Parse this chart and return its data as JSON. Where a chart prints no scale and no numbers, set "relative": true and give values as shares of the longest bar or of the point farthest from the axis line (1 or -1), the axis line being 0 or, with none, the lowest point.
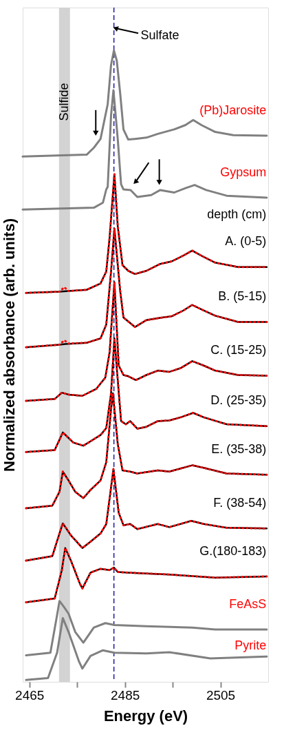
{
  "chart_data": {
    "type": "line",
    "xlabel": "Energy (eV)",
    "ylabel": "Normalized absorbance (arb. units)",
    "xlim": [
      2463.6,
      2515
    ],
    "xticks": [
      2465,
      {
        "value": 2475,
        "label": null
      },
      2485,
      {
        "value": 2495,
        "label": null
      },
      2505
    ],
    "relative": true,
    "series": [
      {
        "name": "(Pb)Jarosite",
        "color": "#808080",
        "x": [
          2463.6,
          2477.0,
          2478.5,
          2479.9,
          2481.4,
          2482.1,
          2482.7,
          2483.3,
          2484.0,
          2484.7,
          2485.7,
          2487.1,
          2489.5,
          2491.9,
          2495.3,
          2497.7,
          2499.3,
          2501.0,
          2503.9,
          2507.7,
          2514.7
        ],
        "values": [
          0.832,
          0.835,
          0.846,
          0.86,
          0.915,
          0.977,
          1.0,
          0.984,
          0.933,
          0.875,
          0.859,
          0.86,
          0.862,
          0.868,
          0.875,
          0.882,
          0.89,
          0.882,
          0.871,
          0.866,
          0.865
        ]
      },
      {
        "name": "Gypsum",
        "color": "#808080",
        "x": [
          2463.6,
          2478.5,
          2480.4,
          2481.1,
          2481.4,
          2482.1,
          2482.6,
          2483.5,
          2484.2,
          2484.7,
          2486.2,
          2487.6,
          2490.5,
          2492.4,
          2495.3,
          2497.7,
          2499.6,
          2502.0,
          2506.3,
          2514.7
        ],
        "values": [
          0.748,
          0.751,
          0.759,
          0.78,
          0.784,
          0.897,
          0.937,
          0.86,
          0.788,
          0.78,
          0.779,
          0.768,
          0.771,
          0.779,
          0.775,
          0.782,
          0.787,
          0.779,
          0.77,
          0.767
        ]
      },
      {
        "name": "A. (0-5)",
        "color": "#000000",
        "x": [
          2464.3,
          2471.3,
          2473.2,
          2477.0,
          2479.9,
          2481.1,
          2481.8,
          2482.8,
          2483.5,
          2484.5,
          2485.7,
          2487.1,
          2489.5,
          2492.4,
          2494.8,
          2497.2,
          2499.1,
          2501.0,
          2503.9,
          2508.7,
          2514.7
        ],
        "values": [
          0.616,
          0.618,
          0.619,
          0.621,
          0.631,
          0.65,
          0.704,
          0.804,
          0.722,
          0.66,
          0.651,
          0.646,
          0.651,
          0.662,
          0.666,
          0.675,
          0.683,
          0.675,
          0.664,
          0.657,
          0.657
        ]
      },
      {
        "name": "B. (5-15)",
        "color": "#000000",
        "x": [
          2464.3,
          2471.3,
          2472.5,
          2477.0,
          2479.9,
          2481.1,
          2482.1,
          2482.8,
          2484.0,
          2484.7,
          2487.1,
          2489.5,
          2492.8,
          2494.8,
          2497.2,
          2499.1,
          2501.0,
          2503.9,
          2508.7,
          2514.7
        ],
        "values": [
          0.53,
          0.534,
          0.535,
          0.537,
          0.544,
          0.566,
          0.65,
          0.718,
          0.62,
          0.577,
          0.562,
          0.573,
          0.577,
          0.579,
          0.588,
          0.597,
          0.59,
          0.58,
          0.57,
          0.57
        ]
      },
      {
        "name": "C. (15-25)",
        "color": "#000000",
        "x": [
          2464.3,
          2470.3,
          2471.8,
          2473.2,
          2476.1,
          2479.0,
          2480.9,
          2481.8,
          2482.8,
          2483.7,
          2484.7,
          2485.7,
          2487.3,
          2489.5,
          2491.9,
          2494.3,
          2496.7,
          2499.1,
          2501.5,
          2503.9,
          2508.7,
          2514.7
        ],
        "values": [
          0.445,
          0.448,
          0.458,
          0.455,
          0.453,
          0.464,
          0.482,
          0.522,
          0.633,
          0.501,
          0.486,
          0.484,
          0.478,
          0.486,
          0.493,
          0.491,
          0.497,
          0.508,
          0.501,
          0.493,
          0.486,
          0.485
        ]
      },
      {
        "name": "D. (25-35)",
        "color": "#000000",
        "x": [
          2464.3,
          2470.3,
          2472.0,
          2472.7,
          2474.2,
          2476.3,
          2477.8,
          2479.9,
          2481.1,
          2482.1,
          2482.8,
          2484.2,
          2485.2,
          2486.1,
          2487.6,
          2489.5,
          2491.9,
          2494.3,
          2496.7,
          2499.3,
          2501.5,
          2506.3,
          2514.7
        ],
        "values": [
          0.364,
          0.367,
          0.395,
          0.39,
          0.379,
          0.374,
          0.381,
          0.391,
          0.402,
          0.457,
          0.544,
          0.413,
          0.408,
          0.413,
          0.401,
          0.404,
          0.413,
          0.414,
          0.419,
          0.426,
          0.419,
          0.408,
          0.405
        ]
      },
      {
        "name": "E. (35-38)",
        "color": "#000000",
        "x": [
          2464.3,
          2469.8,
          2471.3,
          2472.0,
          2473.2,
          2474.6,
          2476.3,
          2477.8,
          2479.9,
          2481.1,
          2482.1,
          2482.5,
          2483.5,
          2484.5,
          2486.1,
          2487.6,
          2491.9,
          2494.3,
          2499.1,
          2501.5,
          2506.3,
          2514.7
        ],
        "values": [
          0.275,
          0.279,
          0.301,
          0.333,
          0.319,
          0.301,
          0.291,
          0.304,
          0.319,
          0.348,
          0.432,
          0.457,
          0.377,
          0.335,
          0.333,
          0.33,
          0.335,
          0.333,
          0.343,
          0.339,
          0.33,
          0.328
        ]
      },
      {
        "name": "F. (38-54)",
        "color": "#000000",
        "x": [
          2464.3,
          2469.8,
          2471.3,
          2472.0,
          2473.7,
          2476.1,
          2477.8,
          2479.9,
          2481.1,
          2482.6,
          2483.7,
          2484.7,
          2486.1,
          2487.6,
          2491.9,
          2494.3,
          2498.9,
          2501.5,
          2506.3,
          2514.7
        ],
        "values": [
          0.192,
          0.199,
          0.235,
          0.251,
          0.232,
          0.212,
          0.222,
          0.235,
          0.25,
          0.337,
          0.268,
          0.248,
          0.25,
          0.242,
          0.25,
          0.245,
          0.255,
          0.25,
          0.244,
          0.243
        ]
      },
      {
        "name": "G.(180-183)",
        "color": "#000000",
        "x": [
          2464.3,
          2470.3,
          2471.8,
          2472.5,
          2473.7,
          2475.6,
          2476.1,
          2477.8,
          2479.9,
          2481.8,
          2482.7,
          2483.5,
          2485.7,
          2494.3,
          2503.9,
          2514.7
        ],
        "values": [
          0.126,
          0.132,
          0.177,
          0.212,
          0.192,
          0.155,
          0.148,
          0.173,
          0.179,
          0.177,
          0.181,
          0.174,
          0.173,
          0.17,
          0.165,
          0.167
        ]
      },
      {
        "name": "FeAsS",
        "color": "#808080",
        "x": [
          2464.3,
          2469.4,
          2470.6,
          2471.3,
          2472.2,
          2473.2,
          2474.6,
          2476.3,
          2478.5,
          2480.9,
          2482.8,
          2489.5,
          2499.1,
          2503.9,
          2514.7
        ],
        "values": [
          0.042,
          0.046,
          0.097,
          0.128,
          0.119,
          0.108,
          0.079,
          0.062,
          0.086,
          0.093,
          0.09,
          0.088,
          0.086,
          0.083,
          0.083
        ]
      },
      {
        "name": "Pyrite",
        "color": "#808080",
        "x": [
          2464.3,
          2468.9,
          2470.8,
          2472.0,
          2473.2,
          2475.4,
          2476.1,
          2477.8,
          2480.4,
          2482.8,
          2489.5,
          2494.3,
          2502.9,
          2514.7
        ],
        "values": [
          0.003,
          0.006,
          0.046,
          0.101,
          0.079,
          0.032,
          0.021,
          0.041,
          0.05,
          0.046,
          0.045,
          0.047,
          0.037,
          0.04
        ]
      },
      {
        "color": "#ff0000",
        "line_style": "dotted",
        "x": [
          2464.3,
          2471.3,
          2472.3,
          2473.2,
          2477.0,
          2479.9,
          2481.1,
          2481.8,
          2482.8,
          2483.5,
          2484.5,
          2485.7,
          2487.1,
          2489.5,
          2492.4,
          2494.8,
          2497.2,
          2499.1,
          2501.0,
          2503.9,
          2508.7,
          2514.7
        ],
        "values": [
          0.616,
          0.618,
          0.625,
          0.619,
          0.621,
          0.631,
          0.65,
          0.704,
          0.804,
          0.722,
          0.66,
          0.651,
          0.646,
          0.651,
          0.662,
          0.666,
          0.675,
          0.683,
          0.675,
          0.664,
          0.657,
          0.657
        ]
      },
      {
        "color": "#ff0000",
        "line_style": "dotted",
        "x": [
          2464.3,
          2471.3,
          2472.3,
          2473.2,
          2477.0,
          2479.9,
          2481.1,
          2482.1,
          2482.8,
          2484.0,
          2484.7,
          2487.1,
          2489.5,
          2492.8,
          2494.8,
          2497.2,
          2499.1,
          2501.0,
          2503.9,
          2508.7,
          2514.7
        ],
        "values": [
          0.53,
          0.534,
          0.541,
          0.536,
          0.537,
          0.544,
          0.566,
          0.65,
          0.718,
          0.62,
          0.577,
          0.562,
          0.573,
          0.577,
          0.579,
          0.588,
          0.597,
          0.59,
          0.58,
          0.57,
          0.57
        ]
      },
      {
        "color": "#ff0000",
        "line_style": "dotted",
        "x": [
          2464.3,
          2470.3,
          2471.8,
          2473.2,
          2476.1,
          2479.0,
          2480.9,
          2481.8,
          2482.8,
          2483.7,
          2484.7,
          2485.7,
          2487.3,
          2489.5,
          2491.9,
          2494.3,
          2496.7,
          2499.1,
          2501.5,
          2503.9,
          2508.7,
          2514.7
        ],
        "values": [
          0.445,
          0.448,
          0.458,
          0.455,
          0.453,
          0.464,
          0.482,
          0.522,
          0.633,
          0.501,
          0.486,
          0.484,
          0.478,
          0.486,
          0.493,
          0.491,
          0.497,
          0.508,
          0.501,
          0.493,
          0.486,
          0.485
        ]
      },
      {
        "color": "#ff0000",
        "line_style": "dotted",
        "x": [
          2464.3,
          2470.3,
          2472.0,
          2472.7,
          2474.2,
          2476.3,
          2477.8,
          2479.9,
          2481.1,
          2482.1,
          2482.8,
          2484.2,
          2485.2,
          2486.1,
          2487.6,
          2489.5,
          2491.9,
          2494.3,
          2496.7,
          2499.3,
          2501.5,
          2506.3,
          2514.7
        ],
        "values": [
          0.364,
          0.367,
          0.395,
          0.39,
          0.379,
          0.374,
          0.381,
          0.391,
          0.402,
          0.457,
          0.544,
          0.413,
          0.408,
          0.413,
          0.401,
          0.404,
          0.413,
          0.414,
          0.419,
          0.426,
          0.419,
          0.408,
          0.405
        ]
      },
      {
        "color": "#ff0000",
        "line_style": "dotted",
        "x": [
          2464.3,
          2469.8,
          2471.3,
          2472.0,
          2473.2,
          2474.6,
          2476.3,
          2477.8,
          2479.9,
          2481.1,
          2482.1,
          2482.5,
          2483.5,
          2484.5,
          2486.1,
          2487.6,
          2491.9,
          2494.3,
          2499.1,
          2501.5,
          2506.3,
          2514.7
        ],
        "values": [
          0.275,
          0.279,
          0.301,
          0.333,
          0.319,
          0.301,
          0.291,
          0.304,
          0.319,
          0.348,
          0.432,
          0.457,
          0.377,
          0.335,
          0.333,
          0.33,
          0.335,
          0.333,
          0.343,
          0.339,
          0.33,
          0.328
        ]
      },
      {
        "color": "#ff0000",
        "line_style": "dotted",
        "x": [
          2464.3,
          2469.8,
          2471.3,
          2472.0,
          2473.7,
          2476.1,
          2477.8,
          2479.9,
          2481.1,
          2482.6,
          2483.7,
          2484.7,
          2486.1,
          2487.6,
          2491.9,
          2494.3,
          2498.9,
          2501.5,
          2506.3,
          2514.7
        ],
        "values": [
          0.192,
          0.199,
          0.235,
          0.251,
          0.232,
          0.212,
          0.222,
          0.235,
          0.25,
          0.337,
          0.268,
          0.248,
          0.25,
          0.242,
          0.25,
          0.245,
          0.255,
          0.25,
          0.244,
          0.243
        ]
      },
      {
        "color": "#ff0000",
        "line_style": "dotted",
        "x": [
          2464.3,
          2470.3,
          2471.8,
          2472.5,
          2473.7,
          2475.6,
          2476.1,
          2477.8,
          2479.9,
          2481.8,
          2482.7,
          2483.5,
          2485.7,
          2494.3,
          2503.9,
          2514.7
        ],
        "values": [
          0.126,
          0.132,
          0.177,
          0.212,
          0.192,
          0.155,
          0.148,
          0.173,
          0.179,
          0.177,
          0.181,
          0.174,
          0.173,
          0.17,
          0.165,
          0.167
        ]
      }
    ],
    "ref_lines": [
      {
        "axis": "x",
        "value": 2482.7,
        "label": "Sulfate",
        "color": "#1a1aa0",
        "line_style": "dashed"
      }
    ],
    "bands": [
      {
        "axis": "x",
        "from": 2471.2,
        "to": 2473.5,
        "label": "Sulfide",
        "color": "#d3d3d3"
      }
    ],
    "annotations": [
      "depth (cm)"
    ]
  }
}
